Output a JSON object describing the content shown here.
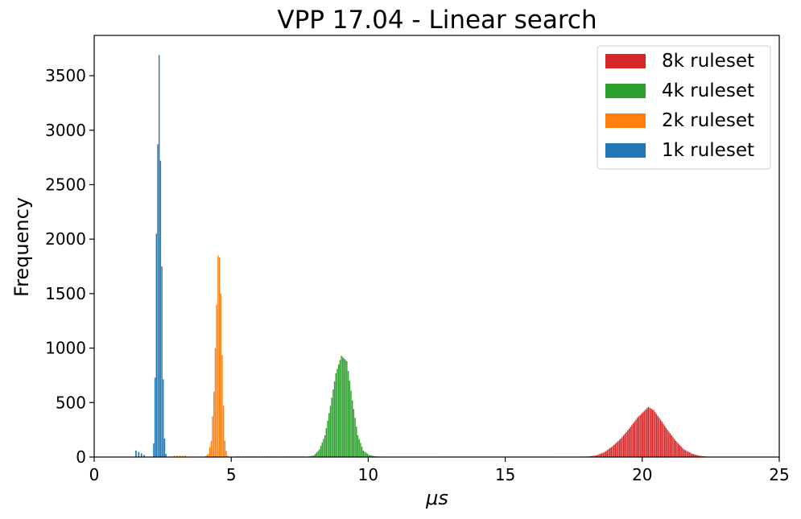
{
  "chart_data": {
    "type": "histogram",
    "title": "VPP 17.04 - Linear search",
    "xlabel": "μs",
    "ylabel": "Frequency",
    "xlim": [
      0,
      25
    ],
    "ylim": [
      0,
      3870
    ],
    "xticks": [
      "0",
      "5",
      "10",
      "15",
      "20",
      "25"
    ],
    "yticks": [
      "0",
      "500",
      "1000",
      "1500",
      "2000",
      "2500",
      "3000",
      "3500"
    ],
    "grid": false,
    "legend_position": "top-right",
    "series": [
      {
        "name": "8k ruleset",
        "color": "#d62728",
        "peak": [
          [
            17.5,
            2
          ],
          [
            18.0,
            5
          ],
          [
            18.3,
            15
          ],
          [
            18.6,
            45
          ],
          [
            18.9,
            100
          ],
          [
            19.2,
            170
          ],
          [
            19.5,
            260
          ],
          [
            19.8,
            360
          ],
          [
            20.0,
            410
          ],
          [
            20.2,
            460
          ],
          [
            20.4,
            430
          ],
          [
            20.6,
            360
          ],
          [
            20.9,
            250
          ],
          [
            21.2,
            150
          ],
          [
            21.5,
            70
          ],
          [
            21.8,
            30
          ],
          [
            22.1,
            10
          ],
          [
            22.4,
            3
          ],
          [
            22.7,
            0
          ]
        ],
        "tail": [
          [
            12.7,
            4
          ],
          [
            16.5,
            4
          ]
        ]
      },
      {
        "name": "4k ruleset",
        "color": "#2ca02c",
        "peak": [
          [
            7.6,
            2
          ],
          [
            7.8,
            5
          ],
          [
            8.0,
            15
          ],
          [
            8.2,
            70
          ],
          [
            8.4,
            200
          ],
          [
            8.6,
            470
          ],
          [
            8.8,
            770
          ],
          [
            9.0,
            930
          ],
          [
            9.2,
            880
          ],
          [
            9.4,
            520
          ],
          [
            9.6,
            200
          ],
          [
            9.8,
            60
          ],
          [
            10.0,
            20
          ],
          [
            10.2,
            8
          ],
          [
            10.5,
            2
          ],
          [
            10.8,
            0
          ]
        ],
        "tail": [
          [
            5.2,
            6
          ],
          [
            7.6,
            6
          ]
        ]
      },
      {
        "name": "2k ruleset",
        "color": "#ff7f0e",
        "peak": [
          [
            4.0,
            0
          ],
          [
            4.15,
            30
          ],
          [
            4.25,
            150
          ],
          [
            4.35,
            600
          ],
          [
            4.45,
            1400
          ],
          [
            4.52,
            2030
          ],
          [
            4.6,
            1500
          ],
          [
            4.68,
            600
          ],
          [
            4.75,
            150
          ],
          [
            4.82,
            20
          ],
          [
            4.9,
            0
          ]
        ],
        "tail": [
          [
            2.9,
            12
          ],
          [
            3.3,
            12
          ]
        ]
      },
      {
        "name": "1k ruleset",
        "color": "#1f77b4",
        "peak": [
          [
            2.1,
            0
          ],
          [
            2.18,
            200
          ],
          [
            2.25,
            2050
          ],
          [
            2.35,
            3690
          ],
          [
            2.45,
            1750
          ],
          [
            2.52,
            300
          ],
          [
            2.58,
            40
          ],
          [
            2.65,
            0
          ]
        ],
        "tail": [
          [
            1.5,
            60
          ],
          [
            1.8,
            20
          ]
        ]
      }
    ]
  }
}
